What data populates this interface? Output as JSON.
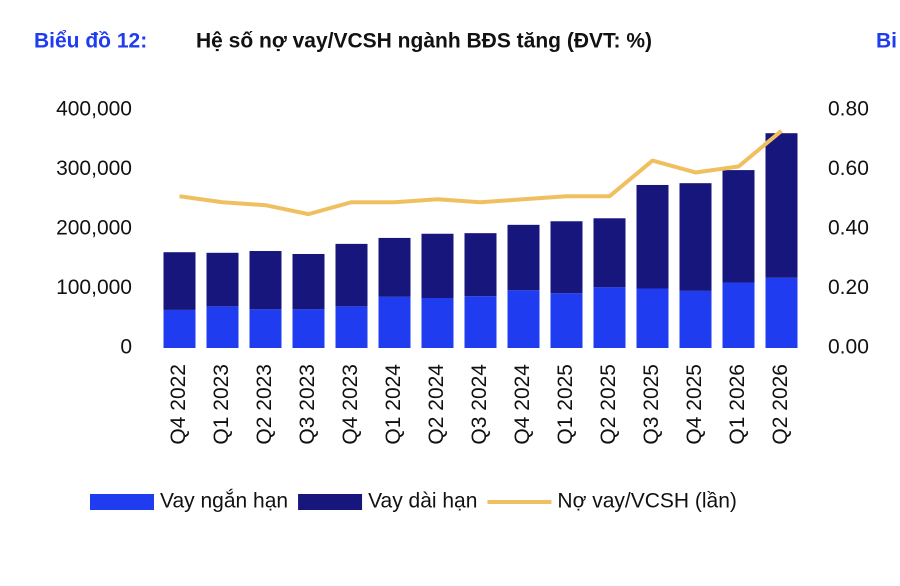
{
  "chart_data": {
    "type": "bar",
    "stacked": true,
    "title_label": "Biểu đồ 12:",
    "title": "Hệ số nợ vay/VCSH ngành BĐS tăng (ĐVT: %)",
    "clipped_text": "Bi",
    "categories": [
      "Q4 2022",
      "Q1 2023",
      "Q2 2023",
      "Q3 2023",
      "Q4 2023",
      "Q1 2024",
      "Q2 2024",
      "Q3 2024",
      "Q4 2024",
      "Q1 2025",
      "Q2 2025",
      "Q3 2025",
      "Q4 2025",
      "Q1 2026",
      "Q2 2026"
    ],
    "series": [
      {
        "name": "Vay ngắn hạn",
        "type": "bar",
        "color": "#1f3cf0",
        "values": [
          64000,
          70000,
          65000,
          65000,
          70000,
          86000,
          84000,
          87000,
          97000,
          92000,
          102000,
          100000,
          96000,
          110000,
          118000
        ]
      },
      {
        "name": "Vay dài hạn",
        "type": "bar",
        "color": "#16167c",
        "values": [
          97000,
          90000,
          98000,
          93000,
          105000,
          99000,
          108000,
          106000,
          110000,
          121000,
          116000,
          174000,
          181000,
          189000,
          243000
        ]
      },
      {
        "name": "Nợ vay/VCSH (lần)",
        "type": "line",
        "axis": "y2",
        "color": "#f0c060",
        "values": [
          0.51,
          0.49,
          0.48,
          0.45,
          0.49,
          0.49,
          0.5,
          0.49,
          0.5,
          0.51,
          0.51,
          0.63,
          0.59,
          0.61,
          0.73
        ]
      }
    ],
    "ylim": [
      0,
      400000
    ],
    "yticks": [
      0,
      {
        "value": 100000,
        "label": "100,000"
      },
      {
        "value": 200000,
        "label": "200,000"
      },
      {
        "value": 300000,
        "label": "300,000"
      },
      {
        "value": 400000,
        "label": "400,000"
      }
    ],
    "y2lim": [
      0,
      0.8
    ],
    "y2ticks": [
      {
        "value": 0,
        "label": "0.00"
      },
      {
        "value": 0.2,
        "label": "0.20"
      },
      {
        "value": 0.4,
        "label": "0.40"
      },
      {
        "value": 0.6,
        "label": "0.60"
      },
      {
        "value": 0.8,
        "label": "0.80"
      }
    ],
    "legend": "bottom"
  }
}
